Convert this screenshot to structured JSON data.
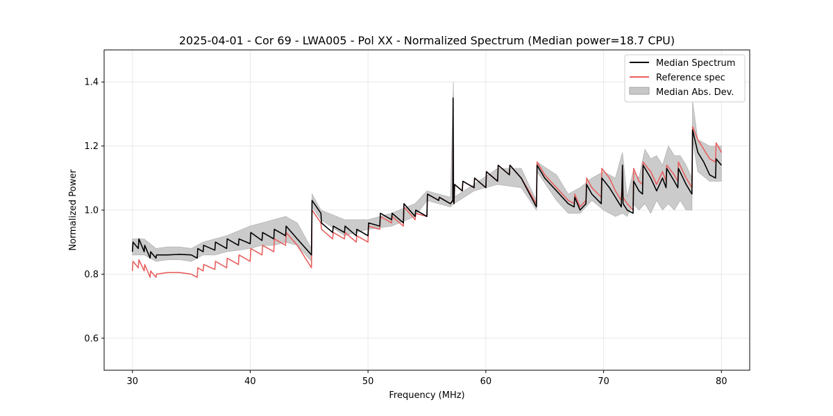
{
  "chart_data": {
    "type": "line",
    "title": "2025-04-01 - Cor 69 - LWA005 - Pol XX - Normalized Spectrum (Median power=18.7 CPU)",
    "xlabel": "Frequency (MHz)",
    "ylabel": "Normalized Power",
    "xlim": [
      27.6,
      82.4
    ],
    "ylim": [
      0.5,
      1.5
    ],
    "xticks": [
      30,
      40,
      50,
      60,
      70,
      80
    ],
    "yticks": [
      0.6,
      0.8,
      1.0,
      1.2,
      1.4
    ],
    "xtick_labels": [
      "30",
      "40",
      "50",
      "60",
      "70",
      "80"
    ],
    "ytick_labels": [
      "0.6",
      "0.8",
      "1.0",
      "1.2",
      "1.4"
    ],
    "grid": true,
    "legend_position": "top-right",
    "legend": [
      {
        "label": "Median Spectrum",
        "color": "#000000",
        "kind": "line"
      },
      {
        "label": "Reference spec",
        "color": "#e8605f",
        "kind": "line"
      },
      {
        "label": "Median Abs. Dev.",
        "color": "#c8c8c8",
        "kind": "patch"
      }
    ],
    "series": [
      {
        "name": "Median Spectrum",
        "color": "#000000",
        "x": [
          30.0,
          30.05,
          30.5,
          30.55,
          31.0,
          31.05,
          31.5,
          31.55,
          32.0,
          32.05,
          33.0,
          34.0,
          35.0,
          35.5,
          35.55,
          36.0,
          36.05,
          37.0,
          37.05,
          38.0,
          38.05,
          39.0,
          39.05,
          40.0,
          40.05,
          41.0,
          41.05,
          42.0,
          42.05,
          43.0,
          43.05,
          44.0,
          45.2,
          45.25,
          46.0,
          46.05,
          47.0,
          47.05,
          48.0,
          48.05,
          49.0,
          49.05,
          50.0,
          50.05,
          51.0,
          51.05,
          52.0,
          52.05,
          53.0,
          53.05,
          54.0,
          54.05,
          55.0,
          55.05,
          56.0,
          56.05,
          57.0,
          57.2,
          57.22,
          57.25,
          57.3,
          57.35,
          58.0,
          58.05,
          59.0,
          59.05,
          60.0,
          60.05,
          61.0,
          61.05,
          62.0,
          62.05,
          63.0,
          64.3,
          64.35,
          65.0,
          66.0,
          67.0,
          67.5,
          67.55,
          68.0,
          68.5,
          68.55,
          69.0,
          69.8,
          69.85,
          70.5,
          71.0,
          71.5,
          71.55,
          71.6,
          71.65,
          72.0,
          72.5,
          72.55,
          73.0,
          73.3,
          73.35,
          74.0,
          74.5,
          75.0,
          75.3,
          75.35,
          76.0,
          76.3,
          76.35,
          77.0,
          77.5,
          77.55,
          78.0,
          78.5,
          79.0,
          79.5,
          79.55,
          80.0
        ],
        "values": [
          0.87,
          0.9,
          0.88,
          0.91,
          0.87,
          0.89,
          0.85,
          0.87,
          0.85,
          0.86,
          0.86,
          0.862,
          0.86,
          0.85,
          0.88,
          0.87,
          0.89,
          0.875,
          0.9,
          0.88,
          0.91,
          0.89,
          0.91,
          0.895,
          0.93,
          0.905,
          0.93,
          0.91,
          0.94,
          0.92,
          0.95,
          0.91,
          0.86,
          1.03,
          0.99,
          0.96,
          0.93,
          0.95,
          0.93,
          0.95,
          0.92,
          0.94,
          0.92,
          0.96,
          0.95,
          0.99,
          0.97,
          0.99,
          0.96,
          1.02,
          0.98,
          1.0,
          0.98,
          1.05,
          1.03,
          1.04,
          1.02,
          1.03,
          1.35,
          1.03,
          1.02,
          1.08,
          1.06,
          1.09,
          1.07,
          1.1,
          1.07,
          1.12,
          1.09,
          1.14,
          1.11,
          1.14,
          1.1,
          1.01,
          1.14,
          1.1,
          1.06,
          1.02,
          1.01,
          1.04,
          1.0,
          1.02,
          1.08,
          1.05,
          1.02,
          1.1,
          1.07,
          1.04,
          1.01,
          1.06,
          1.14,
          1.02,
          1.0,
          0.99,
          1.09,
          1.06,
          1.05,
          1.14,
          1.1,
          1.06,
          1.1,
          1.07,
          1.13,
          1.09,
          1.07,
          1.13,
          1.08,
          1.05,
          1.25,
          1.18,
          1.15,
          1.11,
          1.1,
          1.16,
          1.14
        ]
      },
      {
        "name": "Reference spec",
        "color": "#e8605f",
        "x": [
          30.0,
          30.05,
          30.5,
          30.55,
          31.0,
          31.05,
          31.5,
          31.55,
          32.0,
          32.05,
          33.0,
          34.0,
          35.0,
          35.5,
          35.55,
          36.0,
          36.05,
          37.0,
          37.05,
          38.0,
          38.05,
          39.0,
          39.05,
          40.0,
          40.05,
          41.0,
          41.05,
          42.0,
          42.05,
          43.0,
          43.05,
          44.0,
          45.2,
          45.25,
          46.0,
          46.05,
          47.0,
          47.05,
          48.0,
          48.05,
          49.0,
          49.05,
          50.0,
          50.05,
          51.0,
          51.05,
          52.0,
          52.05,
          53.0,
          53.05,
          54.0,
          54.05,
          55.0,
          55.05,
          56.0,
          56.05,
          57.0,
          57.2,
          57.22,
          57.25,
          57.3,
          57.35,
          58.0,
          58.05,
          59.0,
          59.05,
          60.0,
          60.05,
          61.0,
          61.05,
          62.0,
          62.05,
          63.0,
          64.3,
          64.35,
          65.0,
          66.0,
          67.0,
          67.5,
          67.55,
          68.0,
          68.5,
          68.55,
          69.0,
          69.8,
          69.85,
          70.5,
          71.0,
          71.5,
          71.55,
          71.6,
          71.65,
          72.0,
          72.5,
          72.55,
          73.0,
          73.3,
          73.35,
          74.0,
          74.5,
          75.0,
          75.3,
          75.35,
          76.0,
          76.3,
          76.35,
          77.0,
          77.5,
          77.55,
          78.0,
          78.5,
          79.0,
          79.5,
          79.55,
          80.0
        ],
        "values": [
          0.81,
          0.84,
          0.82,
          0.845,
          0.81,
          0.83,
          0.79,
          0.81,
          0.79,
          0.8,
          0.805,
          0.805,
          0.8,
          0.79,
          0.82,
          0.81,
          0.83,
          0.815,
          0.84,
          0.82,
          0.85,
          0.83,
          0.86,
          0.84,
          0.88,
          0.86,
          0.89,
          0.87,
          0.91,
          0.89,
          0.93,
          0.89,
          0.82,
          1.0,
          0.96,
          0.94,
          0.91,
          0.93,
          0.91,
          0.93,
          0.9,
          0.92,
          0.9,
          0.95,
          0.94,
          0.98,
          0.96,
          0.98,
          0.95,
          1.01,
          0.97,
          0.99,
          0.98,
          1.05,
          1.03,
          1.04,
          1.02,
          1.03,
          1.24,
          1.03,
          1.02,
          1.08,
          1.06,
          1.09,
          1.07,
          1.1,
          1.07,
          1.12,
          1.09,
          1.14,
          1.11,
          1.14,
          1.1,
          1.02,
          1.15,
          1.11,
          1.07,
          1.03,
          1.02,
          1.05,
          1.01,
          1.03,
          1.1,
          1.07,
          1.04,
          1.13,
          1.1,
          1.06,
          1.03,
          1.07,
          1.13,
          1.04,
          1.02,
          1.0,
          1.13,
          1.09,
          1.08,
          1.15,
          1.12,
          1.08,
          1.12,
          1.09,
          1.14,
          1.11,
          1.09,
          1.15,
          1.1,
          1.07,
          1.26,
          1.22,
          1.19,
          1.16,
          1.15,
          1.21,
          1.18
        ]
      },
      {
        "name": "Median Abs. Dev.",
        "color": "#c8c8c8",
        "x": [
          30.0,
          31.0,
          32.0,
          33.0,
          34.0,
          35.0,
          36.0,
          37.0,
          38.0,
          39.0,
          40.0,
          41.0,
          42.0,
          43.0,
          44.0,
          45.2,
          45.25,
          46.0,
          48.0,
          50.0,
          52.0,
          54.0,
          55.0,
          57.0,
          57.25,
          57.3,
          59.0,
          61.0,
          63.0,
          64.3,
          64.35,
          66.0,
          67.0,
          68.0,
          69.0,
          70.0,
          71.0,
          71.6,
          72.0,
          72.5,
          73.0,
          73.5,
          74.0,
          74.5,
          75.0,
          75.5,
          76.0,
          76.5,
          77.0,
          77.5,
          77.55,
          78.0,
          79.0,
          80.0
        ],
        "lower": [
          0.86,
          0.86,
          0.84,
          0.845,
          0.845,
          0.84,
          0.86,
          0.86,
          0.87,
          0.875,
          0.88,
          0.89,
          0.89,
          0.9,
          0.89,
          0.84,
          1.01,
          0.97,
          0.92,
          0.94,
          0.95,
          0.98,
          1.03,
          1.01,
          1.02,
          1.02,
          1.06,
          1.08,
          1.07,
          1.0,
          1.12,
          1.03,
          0.99,
          0.99,
          1.03,
          1.0,
          0.98,
          0.99,
          0.98,
          1.02,
          1.0,
          1.02,
          0.99,
          1.03,
          1.0,
          1.02,
          1.0,
          1.03,
          1.0,
          1.0,
          1.22,
          1.12,
          1.09,
          1.09
        ],
        "upper": [
          0.91,
          0.91,
          0.88,
          0.885,
          0.885,
          0.88,
          0.9,
          0.91,
          0.92,
          0.935,
          0.95,
          0.96,
          0.97,
          0.98,
          0.96,
          0.88,
          1.05,
          1.0,
          0.97,
          0.97,
          0.99,
          1.02,
          1.06,
          1.04,
          1.4,
          1.04,
          1.08,
          1.13,
          1.13,
          1.03,
          1.15,
          1.11,
          1.05,
          1.07,
          1.1,
          1.12,
          1.1,
          1.18,
          1.04,
          1.12,
          1.1,
          1.19,
          1.16,
          1.17,
          1.14,
          1.2,
          1.17,
          1.17,
          1.14,
          1.1,
          1.34,
          1.22,
          1.2,
          1.2
        ]
      }
    ]
  }
}
